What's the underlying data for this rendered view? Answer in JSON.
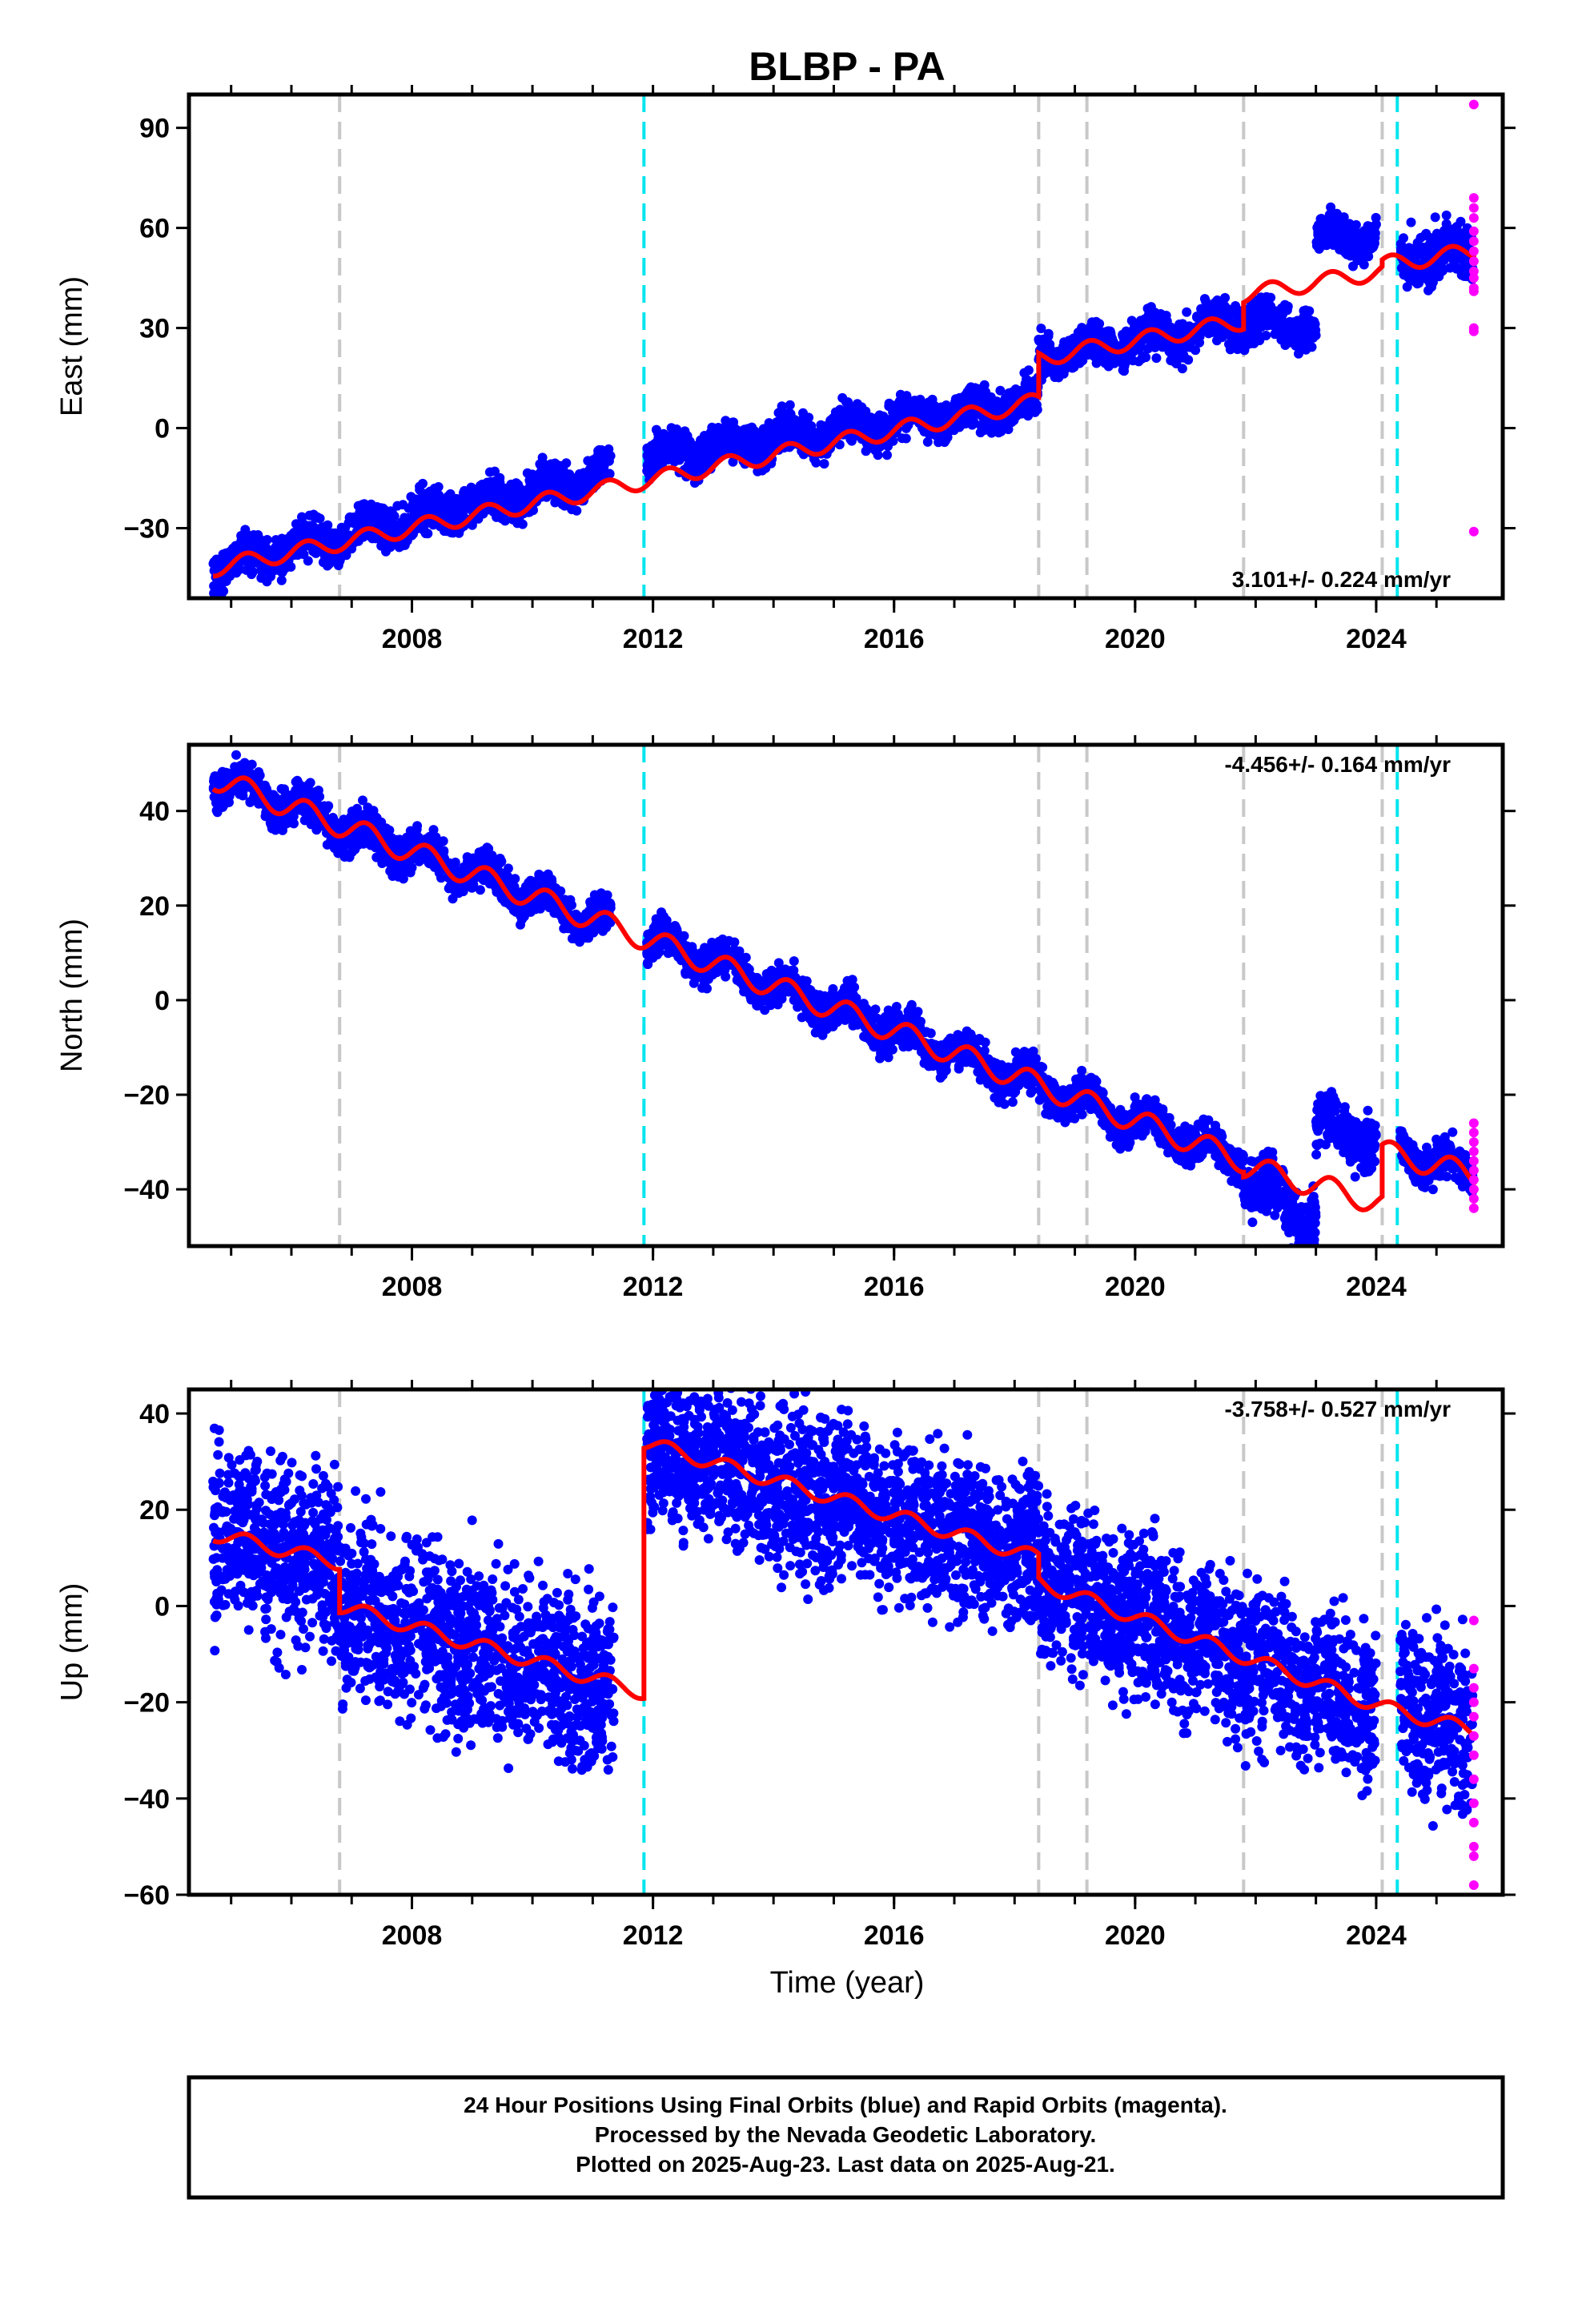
{
  "title": "BLBP - PA",
  "colors": {
    "final_orbits": "#0000ff",
    "rapid_orbits": "#ff00ff",
    "model": "#ff0000",
    "equipment_change": "#c8c8c8",
    "earthquake": "#00e5ee"
  },
  "x_axis": {
    "label": "Time (year)",
    "range": [
      2004.3,
      2026.1
    ],
    "tick_labels": [
      2008,
      2012,
      2016,
      2020,
      2024
    ],
    "minor_ticks": [
      2005,
      2006,
      2007,
      2008,
      2009,
      2010,
      2011,
      2012,
      2013,
      2014,
      2015,
      2016,
      2017,
      2018,
      2019,
      2020,
      2021,
      2022,
      2023,
      2024,
      2025
    ]
  },
  "event_lines": {
    "gray_dashed": [
      2006.8,
      2018.4,
      2019.2,
      2021.8,
      2024.1
    ],
    "cyan_dashed": [
      2011.85,
      2024.35
    ]
  },
  "caption": {
    "line1": "24 Hour Positions Using Final Orbits (blue) and Rapid Orbits (magenta).",
    "line2": "Processed by the Nevada Geodetic Laboratory.",
    "line3": "Plotted on 2025-Aug-23. Last data on 2025-Aug-21."
  },
  "chart_data": [
    {
      "type": "scatter",
      "component": "east",
      "ylabel": "East (mm)",
      "ylim": [
        -51,
        100
      ],
      "yticks": [
        -30,
        0,
        30,
        60,
        90
      ],
      "rate_text": "3.101+/- 0.224 mm/yr",
      "rate_position": "bottom-right",
      "trend_segments": [
        {
          "x0": 2004.7,
          "x1": 2018.4,
          "y0": -42,
          "y1": 8
        },
        {
          "x0": 2018.4,
          "x1": 2021.8,
          "y0": 21,
          "y1": 32
        },
        {
          "x0": 2021.8,
          "x1": 2024.1,
          "y0": 40,
          "y1": 47
        },
        {
          "x0": 2024.1,
          "x1": 2025.65,
          "y0": 49,
          "y1": 53
        }
      ],
      "blue_segments": [
        {
          "x0": 2004.7,
          "x1": 2011.3,
          "y0": -42,
          "y1": -13,
          "scatter": 3
        },
        {
          "x0": 2011.9,
          "x1": 2018.4,
          "y0": -9,
          "y1": 8,
          "scatter": 3
        },
        {
          "x0": 2018.4,
          "x1": 2021.8,
          "y0": 21,
          "y1": 32,
          "scatter": 3
        },
        {
          "x0": 2021.8,
          "x1": 2023.0,
          "y0": 32,
          "y1": 30,
          "scatter": 3
        },
        {
          "x0": 2023.0,
          "x1": 2024.0,
          "y0": 57,
          "y1": 58,
          "scatter": 3
        },
        {
          "x0": 2024.4,
          "x1": 2025.6,
          "y0": 51,
          "y1": 53,
          "scatter": 4
        }
      ],
      "rapid_points": [
        97,
        69,
        66,
        63,
        59,
        56,
        53,
        50,
        47,
        45,
        42,
        41,
        30,
        29,
        -31
      ]
    },
    {
      "type": "scatter",
      "component": "north",
      "ylabel": "North (mm)",
      "ylim": [
        -52,
        54
      ],
      "yticks": [
        -40,
        -20,
        0,
        20,
        40
      ],
      "rate_text": "-4.456+/- 0.164 mm/yr",
      "rate_position": "top-right",
      "trend_segments": [
        {
          "x0": 2004.7,
          "x1": 2021.8,
          "y0": 47,
          "y1": -34
        },
        {
          "x0": 2021.8,
          "x1": 2024.1,
          "y0": -35,
          "y1": -43
        },
        {
          "x0": 2024.1,
          "x1": 2025.65,
          "y0": -32,
          "y1": -37
        }
      ],
      "blue_segments": [
        {
          "x0": 2004.7,
          "x1": 2011.3,
          "y0": 47,
          "y1": 16,
          "scatter": 2
        },
        {
          "x0": 2011.9,
          "x1": 2021.8,
          "y0": 13,
          "y1": -34,
          "scatter": 2
        },
        {
          "x0": 2021.8,
          "x1": 2023.0,
          "y0": -38,
          "y1": -46,
          "scatter": 3
        },
        {
          "x0": 2023.0,
          "x1": 2024.0,
          "y0": -27,
          "y1": -29,
          "scatter": 3
        },
        {
          "x0": 2024.4,
          "x1": 2025.6,
          "y0": -32,
          "y1": -37,
          "scatter": 2
        }
      ],
      "rapid_points": [
        -26,
        -28,
        -30,
        -32,
        -34,
        -36,
        -38,
        -40,
        -42,
        -44
      ]
    },
    {
      "type": "scatter",
      "component": "up",
      "ylabel": "Up (mm)",
      "xlabel": "Time (year)",
      "ylim": [
        -60,
        45
      ],
      "yticks": [
        -60,
        -40,
        -20,
        0,
        20,
        40
      ],
      "rate_text": "-3.758+/- 0.527 mm/yr",
      "rate_position": "top-right",
      "trend_segments": [
        {
          "x0": 2004.7,
          "x1": 2006.8,
          "y0": 15,
          "y1": 9
        },
        {
          "x0": 2006.8,
          "x1": 2011.85,
          "y0": 0,
          "y1": -18
        },
        {
          "x0": 2011.85,
          "x1": 2018.4,
          "y0": 34,
          "y1": 10
        },
        {
          "x0": 2018.4,
          "x1": 2024.1,
          "y0": 5,
          "y1": -21
        },
        {
          "x0": 2024.1,
          "x1": 2025.65,
          "y0": -21,
          "y1": -26
        }
      ],
      "blue_segments": [
        {
          "x0": 2004.7,
          "x1": 2006.8,
          "y0": 15,
          "y1": 9,
          "scatter": 9
        },
        {
          "x0": 2006.8,
          "x1": 2011.35,
          "y0": 0,
          "y1": -17,
          "scatter": 9
        },
        {
          "x0": 2011.9,
          "x1": 2018.4,
          "y0": 33,
          "y1": 10,
          "scatter": 8
        },
        {
          "x0": 2018.4,
          "x1": 2024.0,
          "y0": 5,
          "y1": -21,
          "scatter": 8
        },
        {
          "x0": 2024.4,
          "x1": 2025.6,
          "y0": -21,
          "y1": -26,
          "scatter": 9
        }
      ],
      "rapid_points": [
        -3,
        -13,
        -17,
        -20,
        -23,
        -27,
        -31,
        -36,
        -41,
        -45,
        -50,
        -52,
        -58
      ]
    }
  ]
}
